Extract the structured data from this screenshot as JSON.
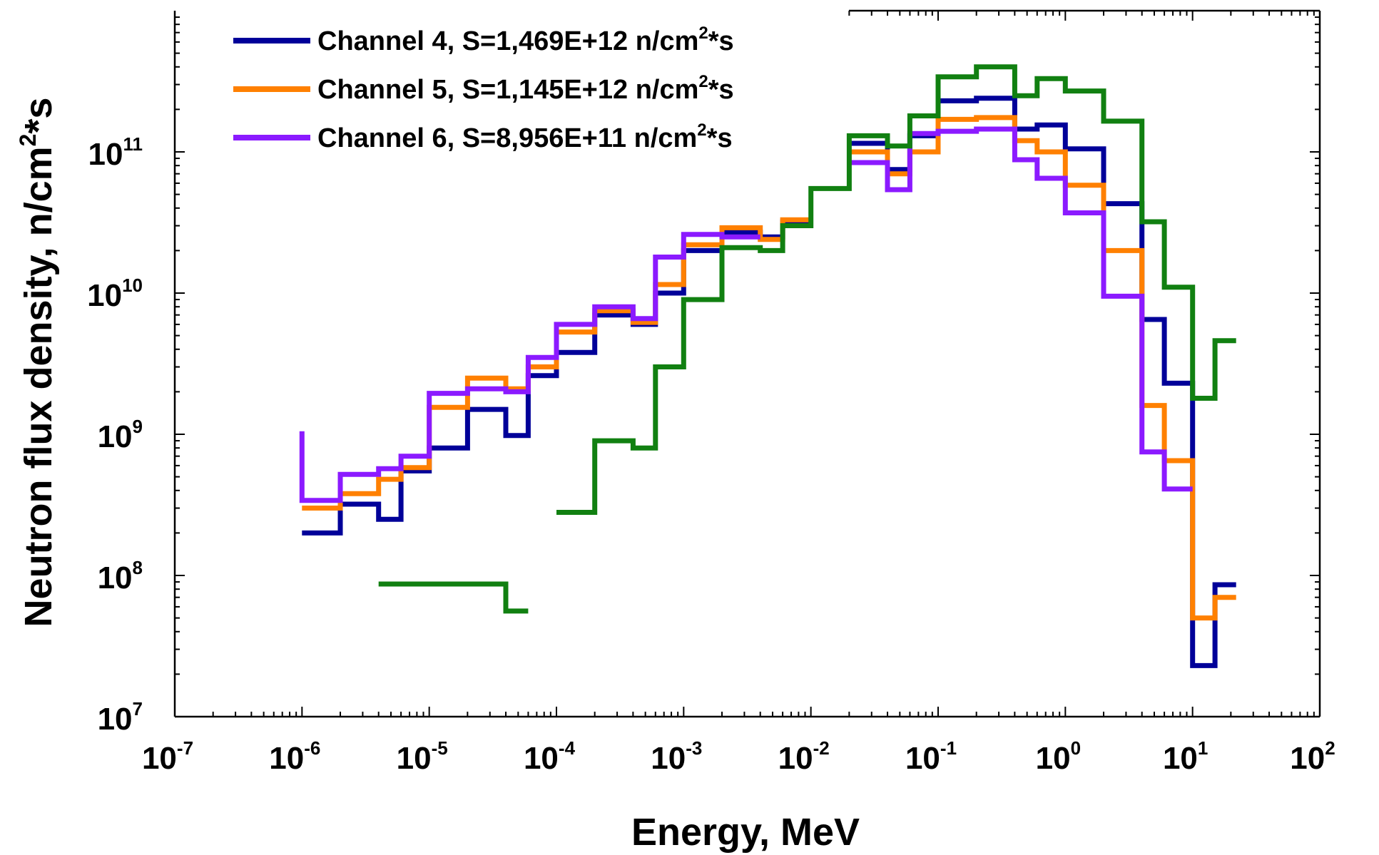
{
  "chart_data": {
    "type": "line",
    "step": true,
    "x_scale": "log",
    "y_scale": "log",
    "xlabel": "Energy, MeV",
    "ylabel": "Neutron flux density, n/cm^2*s",
    "xlim": [
      1e-07,
      100
    ],
    "ylim": [
      10000000.0,
      1000000000000.0
    ],
    "x_ticks": [
      {
        "base": "10",
        "exp": "-7"
      },
      {
        "base": "10",
        "exp": "-6"
      },
      {
        "base": "10",
        "exp": "-5"
      },
      {
        "base": "10",
        "exp": "-4"
      },
      {
        "base": "10",
        "exp": "-3"
      },
      {
        "base": "10",
        "exp": "-2"
      },
      {
        "base": "10",
        "exp": "-1"
      },
      {
        "base": "10",
        "exp": "0"
      },
      {
        "base": "10",
        "exp": "1"
      },
      {
        "base": "10",
        "exp": "2"
      }
    ],
    "y_ticks": [
      {
        "base": "10",
        "exp": "7"
      },
      {
        "base": "10",
        "exp": "8"
      },
      {
        "base": "10",
        "exp": "9"
      },
      {
        "base": "10",
        "exp": "10"
      },
      {
        "base": "10",
        "exp": "11"
      }
    ],
    "legend_position": "top-left",
    "series": [
      {
        "name": "Channel 4, S=1,469E+12 n/cm2*s",
        "label_main": "Channel 4, S=1,469E+12 n/cm",
        "label_sup": "2",
        "label_tail": "*s",
        "color": "#000099",
        "edges": [
          1e-06,
          2e-06,
          4e-06,
          6e-06,
          1e-05,
          2e-05,
          4e-05,
          6e-05,
          0.0001,
          0.0002,
          0.0004,
          0.0006,
          0.001,
          0.002,
          0.004,
          0.006,
          0.01,
          0.02,
          0.04,
          0.06,
          0.1,
          0.2,
          0.4,
          0.6,
          1,
          2,
          4,
          6,
          10,
          15,
          22
        ],
        "values": [
          200000000.0,
          320000000.0,
          250000000.0,
          550000000.0,
          800000000.0,
          1500000000.0,
          980000000.0,
          2600000000.0,
          3800000000.0,
          7000000000.0,
          6000000000.0,
          10000000000.0,
          20000000000.0,
          27000000000.0,
          25000000000.0,
          32000000000.0,
          null,
          115000000000.0,
          75000000000.0,
          130000000000.0,
          230000000000.0,
          240000000000.0,
          145000000000.0,
          155000000000.0,
          105000000000.0,
          43000000000.0,
          6500000000.0,
          2300000000.0,
          23000000.0,
          86000000.0
        ]
      },
      {
        "name": "Channel 5, S=1,145E+12 n/cm2*s",
        "label_main": "Channel 5, S=1,145E+12 n/cm",
        "label_sup": "2",
        "label_tail": "*s",
        "color": "#ff8000",
        "edges": [
          1e-06,
          2e-06,
          4e-06,
          6e-06,
          1e-05,
          2e-05,
          4e-05,
          6e-05,
          0.0001,
          0.0002,
          0.0004,
          0.0006,
          0.001,
          0.002,
          0.004,
          0.006,
          0.01,
          0.02,
          0.04,
          0.06,
          0.1,
          0.2,
          0.4,
          0.6,
          1,
          2,
          4,
          6,
          10,
          15,
          22
        ],
        "values": [
          300000000.0,
          380000000.0,
          480000000.0,
          580000000.0,
          1550000000.0,
          2500000000.0,
          2100000000.0,
          3000000000.0,
          5300000000.0,
          7500000000.0,
          6200000000.0,
          11500000000.0,
          22000000000.0,
          29000000000.0,
          24000000000.0,
          33000000000.0,
          null,
          100000000000.0,
          70000000000.0,
          100000000000.0,
          170000000000.0,
          175000000000.0,
          120000000000.0,
          100000000000.0,
          58000000000.0,
          20000000000.0,
          1600000000.0,
          650000000.0,
          50000000.0,
          70000000.0
        ]
      },
      {
        "name": "Channel 6, S=8,956E+11 n/cm2*s",
        "label_main": "Channel 6, S=8,956E+11 n/cm",
        "label_sup": "2",
        "label_tail": "*s",
        "color": "#8b1aff",
        "lead_in": 1050000000.0,
        "edges": [
          1e-06,
          2e-06,
          4e-06,
          6e-06,
          1e-05,
          2e-05,
          4e-05,
          6e-05,
          0.0001,
          0.0002,
          0.0004,
          0.0006,
          0.001,
          0.002,
          0.004,
          0.006,
          0.01,
          0.02,
          0.04,
          0.06,
          0.1,
          0.2,
          0.4,
          0.6,
          1,
          2,
          4,
          6,
          10
        ],
        "values": [
          340000000.0,
          520000000.0,
          570000000.0,
          700000000.0,
          1950000000.0,
          2100000000.0,
          2000000000.0,
          3500000000.0,
          6000000000.0,
          8000000000.0,
          6600000000.0,
          18000000000.0,
          26000000000.0,
          25000000000.0,
          null,
          null,
          null,
          84000000000.0,
          54000000000.0,
          135000000000.0,
          140000000000.0,
          145000000000.0,
          88000000000.0,
          65000000000.0,
          37000000000.0,
          9500000000.0,
          750000000.0,
          410000000.0
        ]
      },
      {
        "name": "",
        "color": "#118011",
        "edges": [
          4e-06,
          2e-05,
          4e-05,
          6e-05,
          0.0001,
          0.0002,
          0.0004,
          0.0006,
          0.001,
          0.002,
          0.004,
          0.006,
          0.01,
          0.02,
          0.04,
          0.06,
          0.1,
          0.2,
          0.4,
          0.6,
          1,
          2,
          4,
          6,
          10,
          15,
          22
        ],
        "values": [
          87000000.0,
          87000000.0,
          56000000.0,
          null,
          280000000.0,
          900000000.0,
          800000000.0,
          3000000000.0,
          9000000000.0,
          21000000000.0,
          20000000000.0,
          30000000000.0,
          55000000000.0,
          130000000000.0,
          110000000000.0,
          180000000000.0,
          340000000000.0,
          400000000000.0,
          250000000000.0,
          330000000000.0,
          270000000000.0,
          165000000000.0,
          32000000000.0,
          11000000000.0,
          1800000000.0,
          4600000000.0
        ]
      }
    ]
  }
}
